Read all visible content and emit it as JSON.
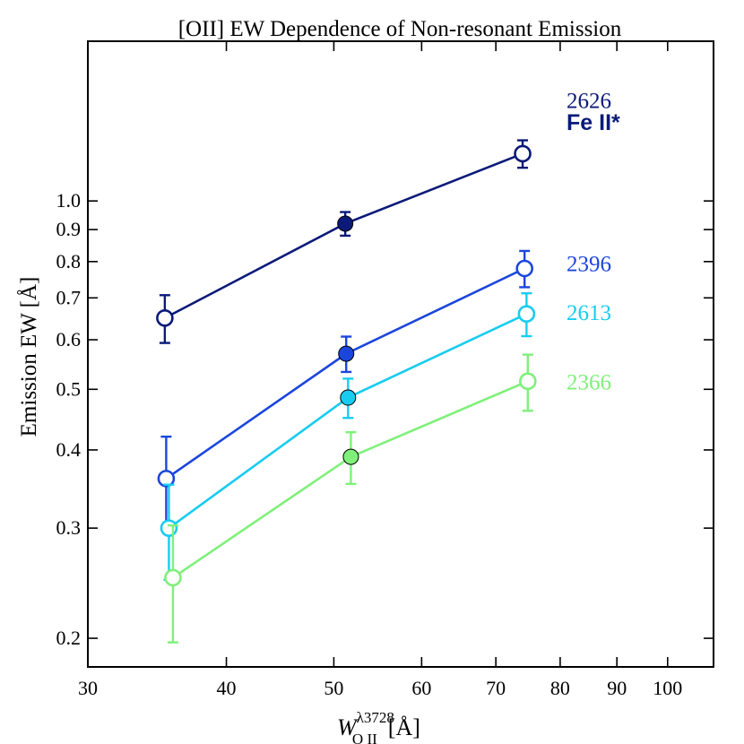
{
  "chart_data": {
    "type": "scatter",
    "title": "[OII] EW Dependence of Non-resonant Emission",
    "xlabel": {
      "main": "W",
      "sup": "λ3728",
      "sub": "O II",
      "unit": "[Å]"
    },
    "ylabel": "Emission EW [Å]",
    "xscale": "log",
    "yscale": "log",
    "xlim": [
      30,
      110
    ],
    "ylim": [
      0.18,
      1.8
    ],
    "x_ticks": [
      {
        "value": 30,
        "label": "30"
      },
      {
        "value": 40,
        "label": "40"
      },
      {
        "value": 50,
        "label": "50"
      },
      {
        "value": 60,
        "label": "60"
      },
      {
        "value": 70,
        "label": "70"
      },
      {
        "value": 80,
        "label": "80"
      },
      {
        "value": 90,
        "label": "90"
      },
      {
        "value": 100,
        "label": "100"
      }
    ],
    "y_ticks": [
      {
        "value": 0.2,
        "label": "0.2"
      },
      {
        "value": 0.3,
        "label": "0.3"
      },
      {
        "value": 0.4,
        "label": "0.4"
      },
      {
        "value": 0.5,
        "label": "0.5"
      },
      {
        "value": 0.6,
        "label": "0.6"
      },
      {
        "value": 0.7,
        "label": "0.7"
      },
      {
        "value": 0.8,
        "label": "0.8"
      },
      {
        "value": 0.9,
        "label": "0.9"
      },
      {
        "value": 1.0,
        "label": "1.0"
      }
    ],
    "legend_title": "Fe II*",
    "legend_title_color": "#0a1a7a",
    "series": [
      {
        "name": "2626",
        "color": "#0b1a78",
        "label_y": 1.45,
        "points": [
          {
            "x": 35.2,
            "y": 0.65,
            "err_lo": 0.057,
            "err_hi": 0.057,
            "filled": false
          },
          {
            "x": 51.2,
            "y": 0.92,
            "err_lo": 0.04,
            "err_hi": 0.04,
            "filled": true
          },
          {
            "x": 74.0,
            "y": 1.19,
            "err_lo": 0.06,
            "err_hi": 0.06,
            "filled": false
          }
        ]
      },
      {
        "name": "2396",
        "color": "#1b46dd",
        "label_y": 0.795,
        "points": [
          {
            "x": 35.3,
            "y": 0.36,
            "err_lo": 0.06,
            "err_hi": 0.06,
            "filled": false
          },
          {
            "x": 51.3,
            "y": 0.57,
            "err_lo": 0.037,
            "err_hi": 0.037,
            "filled": true
          },
          {
            "x": 74.3,
            "y": 0.78,
            "err_lo": 0.052,
            "err_hi": 0.052,
            "filled": false
          }
        ]
      },
      {
        "name": "2613",
        "color": "#18ccf0",
        "label_y": 0.665,
        "points": [
          {
            "x": 35.5,
            "y": 0.3,
            "err_lo": 0.052,
            "err_hi": 0.052,
            "filled": false
          },
          {
            "x": 51.5,
            "y": 0.485,
            "err_lo": 0.035,
            "err_hi": 0.035,
            "filled": true
          },
          {
            "x": 74.6,
            "y": 0.66,
            "err_lo": 0.052,
            "err_hi": 0.052,
            "filled": false
          }
        ]
      },
      {
        "name": "2366",
        "color": "#7ff07a",
        "label_y": 0.515,
        "points": [
          {
            "x": 35.8,
            "y": 0.25,
            "err_lo": 0.053,
            "err_hi": 0.053,
            "filled": false
          },
          {
            "x": 51.8,
            "y": 0.39,
            "err_lo": 0.037,
            "err_hi": 0.037,
            "filled": true
          },
          {
            "x": 74.8,
            "y": 0.515,
            "err_lo": 0.053,
            "err_hi": 0.053,
            "filled": false
          }
        ]
      }
    ]
  }
}
